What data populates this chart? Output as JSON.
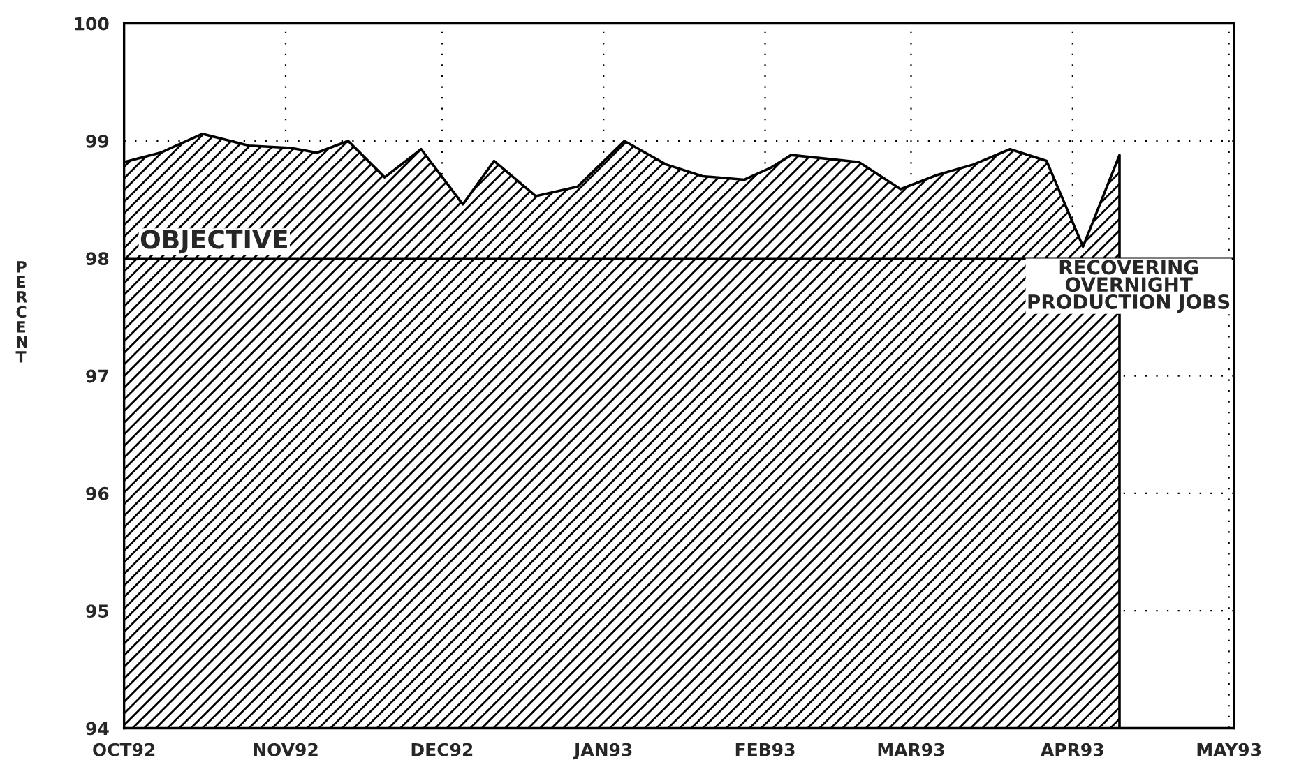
{
  "chart_data": {
    "type": "area",
    "ylabel": "PERCENT",
    "x": [
      "1992-10-01",
      "1992-10-08",
      "1992-10-16",
      "1992-10-25",
      "1992-11-02",
      "1992-11-07",
      "1992-11-13",
      "1992-11-20",
      "1992-11-27",
      "1992-12-05",
      "1992-12-11",
      "1992-12-19",
      "1992-12-27",
      "1993-01-05",
      "1993-01-13",
      "1993-01-20",
      "1993-01-28",
      "1993-02-02",
      "1993-02-06",
      "1993-02-19",
      "1993-02-27",
      "1993-03-06",
      "1993-03-13",
      "1993-03-20",
      "1993-03-27",
      "1993-04-03",
      "1993-04-10"
    ],
    "series": [
      {
        "color": "#000000",
        "values": [
          98.82,
          98.9,
          99.06,
          98.96,
          98.94,
          98.9,
          99.0,
          98.69,
          98.93,
          98.46,
          98.83,
          98.53,
          98.61,
          99.0,
          98.8,
          98.7,
          98.67,
          98.77,
          98.88,
          98.82,
          98.59,
          98.71,
          98.8,
          98.93,
          98.83,
          98.1,
          98.88
        ]
      }
    ],
    "xlim": [
      "1992-10-01",
      "1993-05-02"
    ],
    "xticks": [
      {
        "value": "1992-10-01",
        "label": "OCT92"
      },
      {
        "value": "1992-11-01",
        "label": "NOV92"
      },
      {
        "value": "1992-12-01",
        "label": "DEC92"
      },
      {
        "value": "1993-01-01",
        "label": "JAN93"
      },
      {
        "value": "1993-02-01",
        "label": "FEB93"
      },
      {
        "value": "1993-03-01",
        "label": "MAR93"
      },
      {
        "value": "1993-04-01",
        "label": "APR93"
      },
      {
        "value": "1993-05-01",
        "label": "MAY93"
      }
    ],
    "ylim": [
      94,
      100
    ],
    "yticks": [
      94,
      95,
      96,
      97,
      98,
      99,
      100
    ],
    "ref_lines": [
      {
        "axis": "y",
        "value": 98,
        "label": "OBJECTIVE",
        "color": "#000000"
      }
    ],
    "annotations": [
      "RECOVERING\nOVERNIGHT\nPRODUCTION JOBS"
    ],
    "grid": true,
    "legend": false
  }
}
